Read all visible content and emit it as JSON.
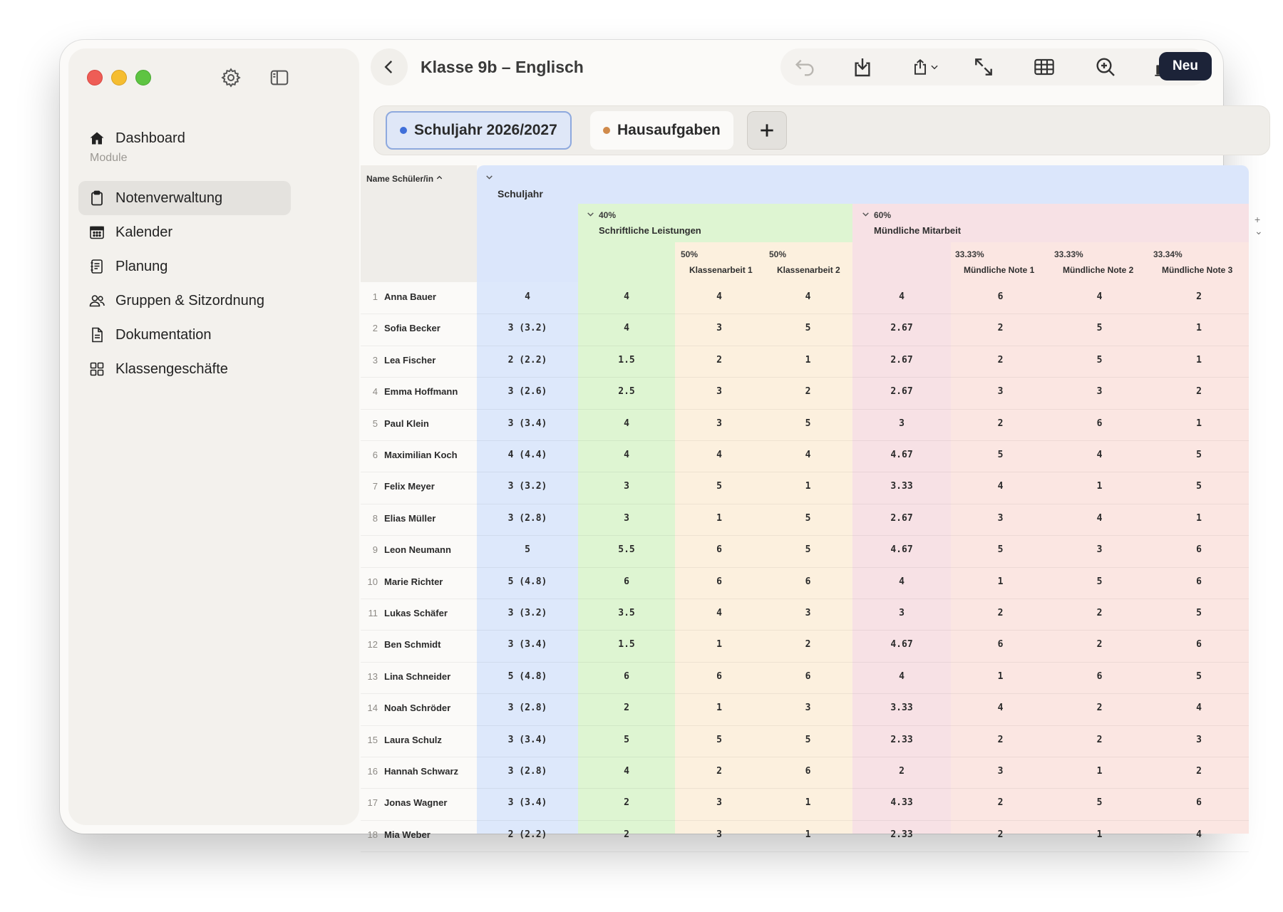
{
  "window": {
    "title": "Klasse 9b – Englisch"
  },
  "sidebar": {
    "section_label": "Module",
    "items": [
      {
        "label": "Dashboard",
        "icon": "house-icon",
        "active": false
      },
      {
        "label": "Notenverwaltung",
        "icon": "clipboard-icon",
        "active": true
      },
      {
        "label": "Kalender",
        "icon": "calendar-icon",
        "active": false
      },
      {
        "label": "Planung",
        "icon": "notebook-icon",
        "active": false
      },
      {
        "label": "Gruppen & Sitzordnung",
        "icon": "people-icon",
        "active": false
      },
      {
        "label": "Dokumentation",
        "icon": "document-icon",
        "active": false
      },
      {
        "label": "Klassengeschäfte",
        "icon": "grid-icon",
        "active": false
      }
    ]
  },
  "toolbar": {
    "new_label": "Neu"
  },
  "tabs": [
    {
      "label": "Schuljahr 2026/2027",
      "dot_color": "#3f6fd9",
      "selected": true
    },
    {
      "label": "Hausaufgaben",
      "dot_color": "#d08a4a",
      "selected": false
    }
  ],
  "grid": {
    "name_header": "Name Schüler/in",
    "root": {
      "label": "Schuljahr"
    },
    "group_written": {
      "pct": "40%",
      "label": "Schriftliche Leistungen"
    },
    "group_oral": {
      "pct": "60%",
      "label": "Mündliche Mitarbeit"
    },
    "sub_columns": [
      {
        "pct": "50%",
        "label": "Klassenarbeit 1"
      },
      {
        "pct": "50%",
        "label": "Klassenarbeit 2"
      },
      {
        "pct": "33.33%",
        "label": "Mündliche Note 1"
      },
      {
        "pct": "33.33%",
        "label": "Mündliche Note 2"
      },
      {
        "pct": "33.34%",
        "label": "Mündliche Note 3"
      }
    ],
    "add_control": "+ ⌄",
    "rows": [
      {
        "num": "1",
        "name": "Anna Bauer",
        "total": "4",
        "written": "4",
        "ka1": "4",
        "ka2": "4",
        "oral": "4",
        "m1": "6",
        "m2": "4",
        "m3": "2"
      },
      {
        "num": "2",
        "name": "Sofia Becker",
        "total": "3 (3.2)",
        "written": "4",
        "ka1": "3",
        "ka2": "5",
        "oral": "2.67",
        "m1": "2",
        "m2": "5",
        "m3": "1"
      },
      {
        "num": "3",
        "name": "Lea Fischer",
        "total": "2 (2.2)",
        "written": "1.5",
        "ka1": "2",
        "ka2": "1",
        "oral": "2.67",
        "m1": "2",
        "m2": "5",
        "m3": "1"
      },
      {
        "num": "4",
        "name": "Emma Hoffmann",
        "total": "3 (2.6)",
        "written": "2.5",
        "ka1": "3",
        "ka2": "2",
        "oral": "2.67",
        "m1": "3",
        "m2": "3",
        "m3": "2"
      },
      {
        "num": "5",
        "name": "Paul Klein",
        "total": "3 (3.4)",
        "written": "4",
        "ka1": "3",
        "ka2": "5",
        "oral": "3",
        "m1": "2",
        "m2": "6",
        "m3": "1"
      },
      {
        "num": "6",
        "name": "Maximilian Koch",
        "total": "4 (4.4)",
        "written": "4",
        "ka1": "4",
        "ka2": "4",
        "oral": "4.67",
        "m1": "5",
        "m2": "4",
        "m3": "5"
      },
      {
        "num": "7",
        "name": "Felix Meyer",
        "total": "3 (3.2)",
        "written": "3",
        "ka1": "5",
        "ka2": "1",
        "oral": "3.33",
        "m1": "4",
        "m2": "1",
        "m3": "5"
      },
      {
        "num": "8",
        "name": "Elias Müller",
        "total": "3 (2.8)",
        "written": "3",
        "ka1": "1",
        "ka2": "5",
        "oral": "2.67",
        "m1": "3",
        "m2": "4",
        "m3": "1"
      },
      {
        "num": "9",
        "name": "Leon Neumann",
        "total": "5",
        "written": "5.5",
        "ka1": "6",
        "ka2": "5",
        "oral": "4.67",
        "m1": "5",
        "m2": "3",
        "m3": "6"
      },
      {
        "num": "10",
        "name": "Marie Richter",
        "total": "5 (4.8)",
        "written": "6",
        "ka1": "6",
        "ka2": "6",
        "oral": "4",
        "m1": "1",
        "m2": "5",
        "m3": "6"
      },
      {
        "num": "11",
        "name": "Lukas Schäfer",
        "total": "3 (3.2)",
        "written": "3.5",
        "ka1": "4",
        "ka2": "3",
        "oral": "3",
        "m1": "2",
        "m2": "2",
        "m3": "5"
      },
      {
        "num": "12",
        "name": "Ben Schmidt",
        "total": "3 (3.4)",
        "written": "1.5",
        "ka1": "1",
        "ka2": "2",
        "oral": "4.67",
        "m1": "6",
        "m2": "2",
        "m3": "6"
      },
      {
        "num": "13",
        "name": "Lina Schneider",
        "total": "5 (4.8)",
        "written": "6",
        "ka1": "6",
        "ka2": "6",
        "oral": "4",
        "m1": "1",
        "m2": "6",
        "m3": "5"
      },
      {
        "num": "14",
        "name": "Noah Schröder",
        "total": "3 (2.8)",
        "written": "2",
        "ka1": "1",
        "ka2": "3",
        "oral": "3.33",
        "m1": "4",
        "m2": "2",
        "m3": "4"
      },
      {
        "num": "15",
        "name": "Laura Schulz",
        "total": "3 (3.4)",
        "written": "5",
        "ka1": "5",
        "ka2": "5",
        "oral": "2.33",
        "m1": "2",
        "m2": "2",
        "m3": "3"
      },
      {
        "num": "16",
        "name": "Hannah Schwarz",
        "total": "3 (2.8)",
        "written": "4",
        "ka1": "2",
        "ka2": "6",
        "oral": "2",
        "m1": "3",
        "m2": "1",
        "m3": "2"
      },
      {
        "num": "17",
        "name": "Jonas Wagner",
        "total": "3 (3.4)",
        "written": "2",
        "ka1": "3",
        "ka2": "1",
        "oral": "4.33",
        "m1": "2",
        "m2": "5",
        "m3": "6"
      },
      {
        "num": "18",
        "name": "Mia Weber",
        "total": "2 (2.2)",
        "written": "2",
        "ka1": "3",
        "ka2": "1",
        "oral": "2.33",
        "m1": "2",
        "m2": "1",
        "m3": "4"
      }
    ]
  },
  "colors": {
    "root_band": "#dbe6fb",
    "written_band": "#def5d2",
    "written_sub": "#fcf0de",
    "oral_band": "#f7e1e5",
    "oral_sub": "#fbe6e2"
  }
}
